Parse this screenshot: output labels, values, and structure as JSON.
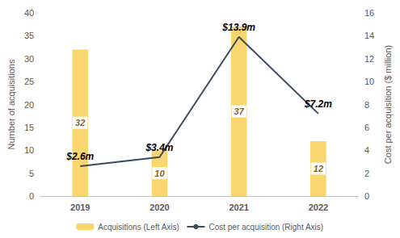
{
  "chart_data": {
    "type": "bar",
    "categories": [
      "2019",
      "2020",
      "2021",
      "2022"
    ],
    "series": [
      {
        "name": "Acquisitions (Left Axis)",
        "type": "bar",
        "color": "#fad66e",
        "values": [
          32,
          10,
          37,
          12
        ],
        "data_labels": true
      },
      {
        "name": "Cost per acquisition (Right Axis)",
        "type": "line",
        "color": "#3a4a5e",
        "axis": "y2",
        "values": [
          2.6,
          3.4,
          13.9,
          7.2
        ],
        "value_labels": [
          "$2.6m",
          "$3.4m",
          "$13.9m",
          "$7.2m"
        ],
        "data_labels": true
      }
    ],
    "ylabel": "Number of acquisitions",
    "y2label": "Cost per acquisition ($ million)",
    "ylim": [
      0,
      40
    ],
    "yticks": [
      0,
      5,
      10,
      15,
      20,
      25,
      30,
      35,
      40
    ],
    "y2lim": [
      0,
      16
    ],
    "y2ticks": [
      0,
      2,
      4,
      6,
      8,
      10,
      12,
      14,
      16
    ],
    "grid": false,
    "legend": "bottom"
  }
}
